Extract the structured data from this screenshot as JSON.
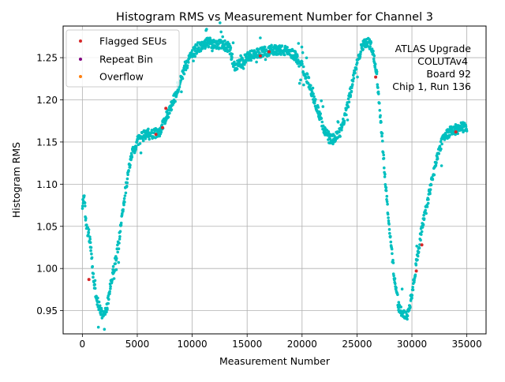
{
  "chart_data": {
    "type": "scatter",
    "title": "Histogram RMS vs Measurement Number for Channel 3",
    "xlabel": "Measurement Number",
    "ylabel": "Histogram RMS",
    "xlim": [
      -1750,
      36750
    ],
    "ylim": [
      0.9225,
      1.2875
    ],
    "grid": true,
    "legend_placement": "top-left",
    "x_ticks": [
      0,
      5000,
      10000,
      15000,
      20000,
      25000,
      30000,
      35000
    ],
    "y_ticks": [
      0.95,
      1.0,
      1.05,
      1.1,
      1.15,
      1.2,
      1.25
    ],
    "y_tick_labels": [
      "0.95",
      "1.00",
      "1.05",
      "1.10",
      "1.15",
      "1.20",
      "1.25"
    ],
    "annotation_lines": [
      "ATLAS Upgrade",
      "COLUTAv4",
      "Board 92",
      "Chip 1, Run 136"
    ],
    "colors": {
      "main": "#00bfbf",
      "flagged": "#d62728",
      "repeat": "#800080",
      "overflow": "#ff7f0e"
    },
    "series": [
      {
        "name": "Measurements",
        "in_legend": false,
        "color_key": "main",
        "trend": [
          [
            0,
            1.07
          ],
          [
            150,
            1.09
          ],
          [
            350,
            1.05
          ],
          [
            600,
            1.04
          ],
          [
            800,
            1.02
          ],
          [
            1000,
            0.99
          ],
          [
            1200,
            0.97
          ],
          [
            1500,
            0.955
          ],
          [
            1800,
            0.947
          ],
          [
            2100,
            0.948
          ],
          [
            2400,
            0.965
          ],
          [
            2700,
            0.99
          ],
          [
            3000,
            1.01
          ],
          [
            3300,
            1.03
          ],
          [
            3600,
            1.06
          ],
          [
            3900,
            1.09
          ],
          [
            4200,
            1.115
          ],
          [
            4500,
            1.135
          ],
          [
            5000,
            1.15
          ],
          [
            5500,
            1.157
          ],
          [
            6000,
            1.16
          ],
          [
            6500,
            1.159
          ],
          [
            7000,
            1.162
          ],
          [
            7500,
            1.175
          ],
          [
            8000,
            1.19
          ],
          [
            8500,
            1.205
          ],
          [
            9000,
            1.225
          ],
          [
            9500,
            1.242
          ],
          [
            10000,
            1.255
          ],
          [
            10500,
            1.262
          ],
          [
            11000,
            1.265
          ],
          [
            11500,
            1.268
          ],
          [
            12000,
            1.267
          ],
          [
            12500,
            1.266
          ],
          [
            13000,
            1.264
          ],
          [
            13400,
            1.262
          ],
          [
            13800,
            1.24
          ],
          [
            14300,
            1.242
          ],
          [
            15000,
            1.25
          ],
          [
            15500,
            1.253
          ],
          [
            16000,
            1.255
          ],
          [
            16500,
            1.257
          ],
          [
            17000,
            1.258
          ],
          [
            17500,
            1.26
          ],
          [
            18000,
            1.259
          ],
          [
            18500,
            1.258
          ],
          [
            19000,
            1.256
          ],
          [
            19500,
            1.25
          ],
          [
            20000,
            1.24
          ],
          [
            20500,
            1.225
          ],
          [
            21000,
            1.205
          ],
          [
            21500,
            1.185
          ],
          [
            22000,
            1.165
          ],
          [
            22500,
            1.153
          ],
          [
            23000,
            1.154
          ],
          [
            23500,
            1.162
          ],
          [
            24000,
            1.185
          ],
          [
            24500,
            1.215
          ],
          [
            25000,
            1.245
          ],
          [
            25500,
            1.265
          ],
          [
            26000,
            1.268
          ],
          [
            26400,
            1.262
          ],
          [
            26800,
            1.23
          ],
          [
            27200,
            1.17
          ],
          [
            27600,
            1.1
          ],
          [
            28000,
            1.04
          ],
          [
            28400,
            0.99
          ],
          [
            28800,
            0.955
          ],
          [
            29200,
            0.944
          ],
          [
            29600,
            0.945
          ],
          [
            30000,
            0.97
          ],
          [
            30400,
            1.005
          ],
          [
            30800,
            1.04
          ],
          [
            31200,
            1.065
          ],
          [
            31600,
            1.09
          ],
          [
            32000,
            1.115
          ],
          [
            32400,
            1.135
          ],
          [
            32800,
            1.155
          ],
          [
            33200,
            1.16
          ],
          [
            33600,
            1.163
          ],
          [
            34000,
            1.165
          ],
          [
            34500,
            1.167
          ],
          [
            35000,
            1.168
          ]
        ]
      },
      {
        "name": "Flagged SEUs",
        "in_legend": true,
        "color_key": "flagged",
        "points": [
          [
            600,
            0.987
          ],
          [
            6700,
            1.159
          ],
          [
            7300,
            1.167
          ],
          [
            7600,
            1.19
          ],
          [
            16200,
            1.252
          ],
          [
            17000,
            1.257
          ],
          [
            26700,
            1.227
          ],
          [
            30400,
            0.997
          ],
          [
            30900,
            1.028
          ],
          [
            34000,
            1.162
          ]
        ]
      },
      {
        "name": "Repeat Bin",
        "in_legend": true,
        "color_key": "repeat",
        "points": []
      },
      {
        "name": "Overflow",
        "in_legend": true,
        "color_key": "overflow",
        "points": []
      }
    ]
  }
}
